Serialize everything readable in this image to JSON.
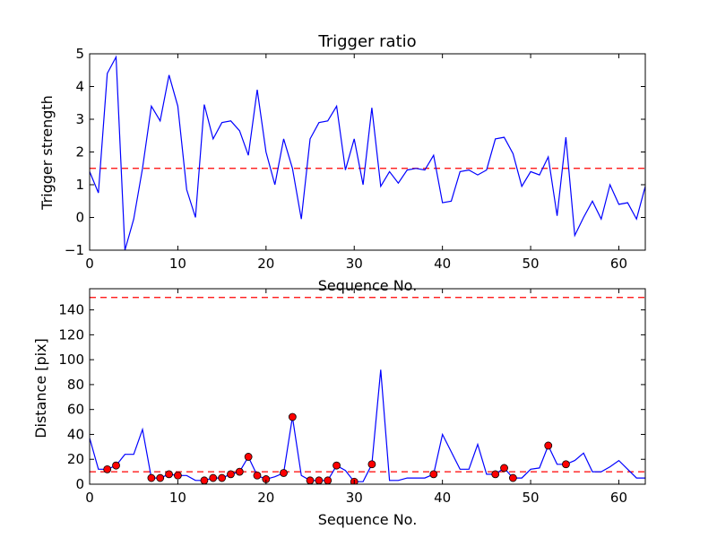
{
  "chart_data": [
    {
      "type": "line",
      "title": "Trigger ratio",
      "xlabel": "Sequence No.",
      "ylabel": "Trigger strength",
      "xlim": [
        0,
        63
      ],
      "ylim": [
        -1,
        5
      ],
      "xticks": [
        0,
        10,
        20,
        30,
        40,
        50,
        60
      ],
      "yticks": [
        -1,
        0,
        1,
        2,
        3,
        4,
        5
      ],
      "grid": false,
      "threshold": 1.5,
      "line_color": "#0000ff",
      "threshold_color": "#ff0000",
      "series": [
        {
          "x": [
            0,
            1,
            2,
            3,
            4,
            5,
            6,
            7,
            8,
            9,
            10,
            11,
            12,
            13,
            14,
            15,
            16,
            17,
            18,
            19,
            20,
            21,
            22,
            23,
            24,
            25,
            26,
            27,
            28,
            29,
            30,
            31,
            32,
            33,
            34,
            35,
            36,
            37,
            38,
            39,
            40,
            41,
            42,
            43,
            44,
            45,
            46,
            47,
            48,
            49,
            50,
            51,
            52,
            53,
            54,
            55,
            56,
            57,
            58,
            59,
            60,
            61,
            62,
            63
          ],
          "values": [
            1.4,
            0.75,
            4.4,
            4.9,
            -1.0,
            -0.05,
            1.5,
            3.4,
            2.95,
            4.35,
            3.4,
            0.85,
            0.0,
            3.45,
            2.4,
            2.9,
            2.95,
            2.65,
            1.9,
            3.9,
            2.0,
            1.0,
            2.4,
            1.5,
            -0.05,
            2.4,
            2.9,
            2.95,
            3.4,
            1.45,
            2.4,
            1.0,
            3.35,
            0.95,
            1.4,
            1.05,
            1.45,
            1.5,
            1.45,
            1.9,
            0.45,
            0.5,
            1.4,
            1.45,
            1.3,
            1.45,
            2.4,
            2.45,
            1.95,
            0.95,
            1.4,
            1.3,
            1.85,
            0.05,
            2.45,
            -0.55,
            0.0,
            0.5,
            -0.05,
            1.0,
            0.4,
            0.45,
            -0.05,
            0.95
          ]
        }
      ]
    },
    {
      "type": "line",
      "title": "",
      "xlabel": "Sequence No.",
      "ylabel": "Distance [pix]",
      "xlim": [
        0,
        63
      ],
      "ylim": [
        0,
        157
      ],
      "xticks": [
        0,
        10,
        20,
        30,
        40,
        50,
        60
      ],
      "yticks": [
        0,
        20,
        40,
        60,
        80,
        100,
        120,
        140
      ],
      "grid": false,
      "thresholds": [
        150,
        10
      ],
      "line_color": "#0000ff",
      "threshold_color": "#ff0000",
      "marker_color": "#ff0000",
      "series": [
        {
          "x": [
            0,
            1,
            2,
            3,
            4,
            5,
            6,
            7,
            8,
            9,
            10,
            11,
            12,
            13,
            14,
            15,
            16,
            17,
            18,
            19,
            20,
            21,
            22,
            23,
            24,
            25,
            26,
            27,
            28,
            29,
            30,
            31,
            32,
            33,
            34,
            35,
            36,
            37,
            38,
            39,
            40,
            41,
            42,
            43,
            44,
            45,
            46,
            47,
            48,
            49,
            50,
            51,
            52,
            53,
            54,
            55,
            56,
            57,
            58,
            59,
            60,
            61,
            62,
            63
          ],
          "values": [
            37,
            12,
            12,
            15,
            24,
            24,
            44,
            5,
            5,
            8,
            7,
            7,
            3,
            3,
            5,
            5,
            8,
            10,
            22,
            7,
            4,
            6,
            9,
            54,
            7,
            3,
            3,
            3,
            15,
            11,
            2,
            2,
            16,
            92,
            3,
            3,
            5,
            5,
            5,
            8,
            40,
            26,
            12,
            12,
            32,
            8,
            8,
            13,
            5,
            5,
            12,
            13,
            31,
            16,
            16,
            19,
            25,
            10,
            10,
            14,
            19,
            12,
            5,
            5
          ]
        },
        {
          "name": "markers",
          "x": [
            2,
            3,
            7,
            8,
            9,
            10,
            13,
            14,
            15,
            16,
            17,
            18,
            19,
            20,
            22,
            23,
            25,
            26,
            27,
            28,
            30,
            32,
            39,
            46,
            47,
            48,
            52,
            54
          ],
          "values": [
            12,
            15,
            5,
            5,
            8,
            7,
            3,
            5,
            5,
            8,
            10,
            22,
            7,
            4,
            9,
            54,
            3,
            3,
            3,
            15,
            2,
            16,
            8,
            8,
            13,
            5,
            31,
            16
          ]
        }
      ]
    }
  ]
}
